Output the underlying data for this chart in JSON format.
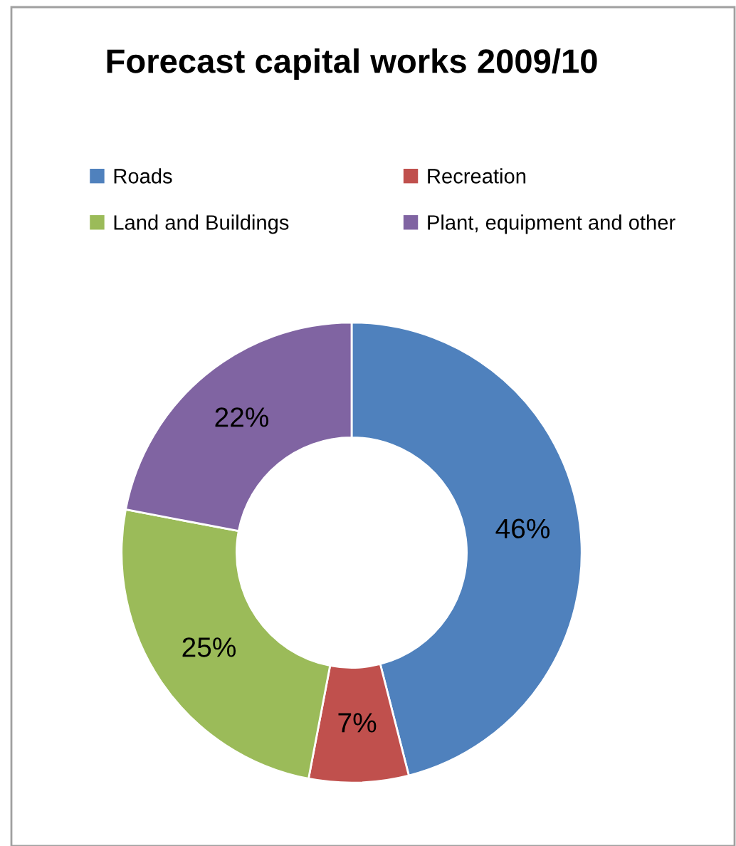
{
  "chart_data": {
    "type": "donut",
    "title": "Forecast capital works 2009/10",
    "categories": [
      "Roads",
      "Recreation",
      "Land and Buildings",
      "Plant, equipment and other"
    ],
    "values": [
      46,
      7,
      25,
      22
    ],
    "colors": [
      "#4f81bd",
      "#c0504d",
      "#9bbb59",
      "#8064a2"
    ],
    "value_labels": [
      "46%",
      "7%",
      "25%",
      "22%"
    ],
    "legend": "top"
  }
}
